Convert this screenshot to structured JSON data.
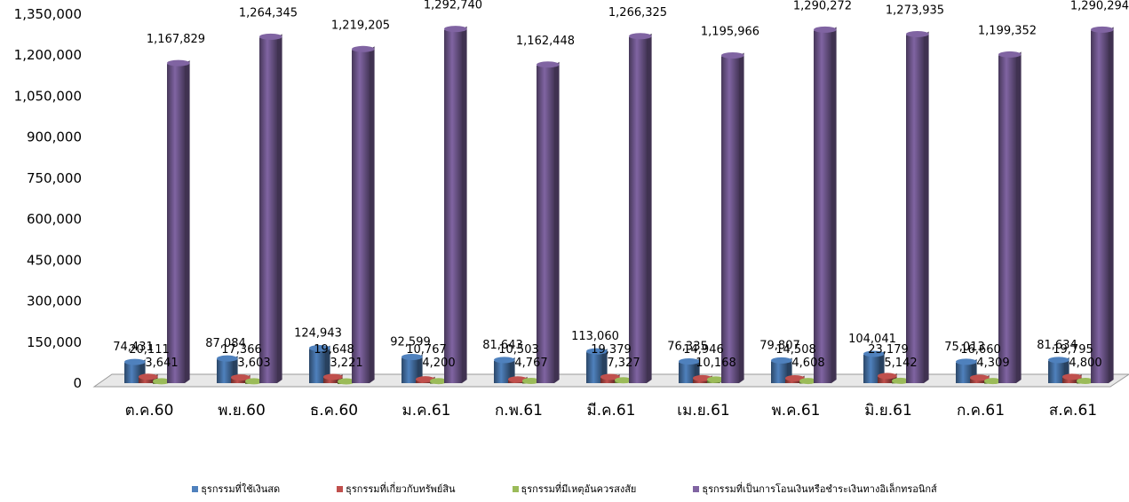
{
  "chart_data": {
    "type": "bar",
    "categories": [
      "ต.ค.60",
      "พ.ย.60",
      "ธ.ค.60",
      "ม.ค.61",
      "ก.พ.61",
      "มี.ค.61",
      "เม.ย.61",
      "พ.ค.61",
      "มิ.ย.61",
      "ก.ค.61",
      "ส.ค.61"
    ],
    "series": [
      {
        "name": "ธุรกรรมที่ใช้เงินสด",
        "color": "#4F81BD",
        "values": [
          74431,
          87084,
          124943,
          92599,
          81643,
          113060,
          76335,
          79807,
          104041,
          75013,
          81634
        ]
      },
      {
        "name": "ธุรกรรมที่เกี่ยวกับทรัพย์สิน",
        "color": "#C0504D",
        "values": [
          20111,
          17366,
          19648,
          10767,
          10503,
          19379,
          14946,
          14508,
          23179,
          16660,
          19795
        ]
      },
      {
        "name": "ธุรกรรมที่มีเหตุอันควรสงสัย",
        "color": "#9BBB59",
        "values": [
          3641,
          3603,
          3221,
          4200,
          4767,
          7327,
          10168,
          4608,
          5142,
          4309,
          4800
        ]
      },
      {
        "name": "ธุรกรรมที่เป็นการโอนเงินหรือชำระเงินทางอิเล็กทรอนิกส์",
        "color": "#8064A2",
        "values": [
          1167829,
          1264345,
          1219205,
          1292740,
          1162448,
          1266325,
          1195966,
          1290272,
          1273935,
          1199352,
          1290294
        ]
      }
    ],
    "y_ticks": [
      "0",
      "150,000",
      "300,000",
      "450,000",
      "600,000",
      "750,000",
      "900,000",
      "1,050,000",
      "1,200,000",
      "1,350,000"
    ],
    "ylim": [
      0,
      1350000
    ],
    "grid": false,
    "legend_position": "bottom"
  }
}
